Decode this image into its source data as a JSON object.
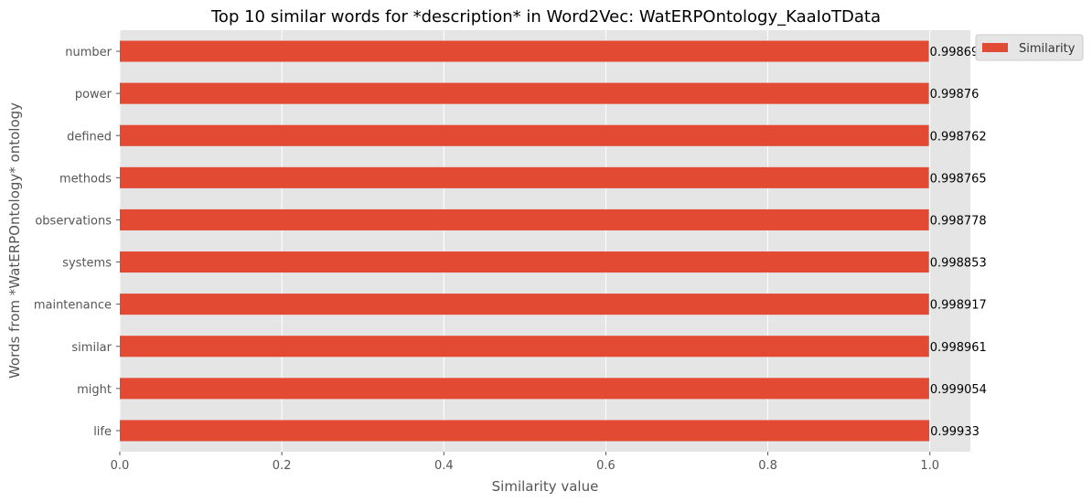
{
  "chart_data": {
    "type": "bar",
    "orientation": "horizontal",
    "title": "Top 10 similar words for *description* in Word2Vec: WatERPOntology_KaaIoTData",
    "xlabel": "Similarity value",
    "ylabel": "Words from *WatERPOntology* ontology",
    "categories": [
      "life",
      "might",
      "similar",
      "maintenance",
      "systems",
      "observations",
      "methods",
      "defined",
      "power",
      "number"
    ],
    "series": [
      {
        "name": "Similarity",
        "values": [
          0.99933,
          0.999054,
          0.998961,
          0.998917,
          0.998853,
          0.998778,
          0.998765,
          0.998762,
          0.99876,
          0.998698
        ],
        "labels": [
          "0.99933",
          "0.999054",
          "0.998961",
          "0.998917",
          "0.998853",
          "0.998778",
          "0.998765",
          "0.998762",
          "0.99876",
          "0.998698"
        ],
        "color": "#e24a33"
      }
    ],
    "xlim": [
      0,
      1.05
    ],
    "xticks": [
      "0.0",
      "0.2",
      "0.4",
      "0.6",
      "0.8",
      "1.0"
    ],
    "grid": true,
    "legend": "top-right",
    "background": "#e5e5e5",
    "grid_color": "#ffffff"
  }
}
